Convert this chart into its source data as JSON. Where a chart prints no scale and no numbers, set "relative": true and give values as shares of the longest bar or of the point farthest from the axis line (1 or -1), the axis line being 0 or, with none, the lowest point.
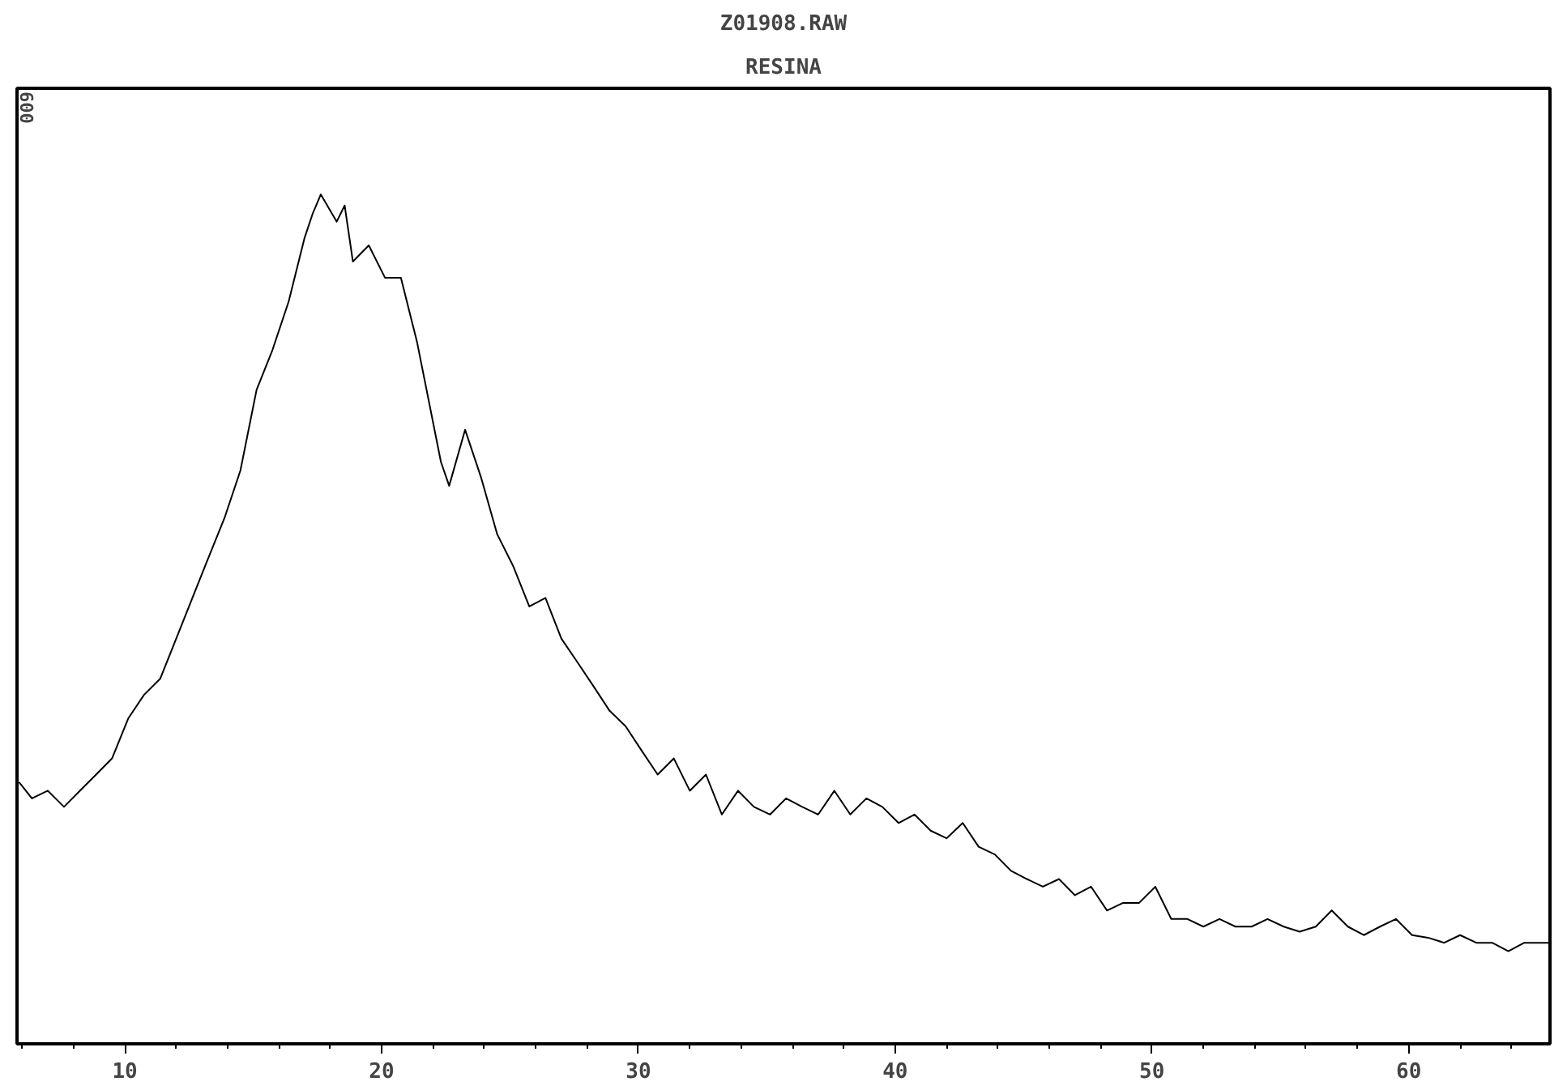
{
  "chart_data": {
    "type": "line",
    "title": "Z01908.RAW",
    "subtitle": "RESINA",
    "relative": true,
    "annotations": [
      "600"
    ],
    "xlim": [
      5.8,
      65.5
    ],
    "xticks": [
      10,
      20,
      30,
      40,
      50,
      60
    ],
    "grid": false,
    "marker": "none",
    "line_style": "solid",
    "series": [
      {
        "color": "#000000",
        "x": [
          5.88,
          6.38,
          7.0,
          7.63,
          8.25,
          8.88,
          9.5,
          10.13,
          10.75,
          11.38,
          12.0,
          12.63,
          13.25,
          13.88,
          14.5,
          15.13,
          15.75,
          16.38,
          17.0,
          17.31,
          17.63,
          18.25,
          18.56,
          18.88,
          19.5,
          20.13,
          20.75,
          21.38,
          22.0,
          22.31,
          22.63,
          23.25,
          23.88,
          24.5,
          25.13,
          25.75,
          26.38,
          27.0,
          27.63,
          28.25,
          28.88,
          29.5,
          30.13,
          30.75,
          31.38,
          32.0,
          32.63,
          33.25,
          33.88,
          34.5,
          35.13,
          35.75,
          36.38,
          37.0,
          37.63,
          38.25,
          38.88,
          39.5,
          40.13,
          40.75,
          41.38,
          42.0,
          42.63,
          43.25,
          43.88,
          44.5,
          45.13,
          45.75,
          46.38,
          47.0,
          47.63,
          48.25,
          48.88,
          49.5,
          50.13,
          50.75,
          51.38,
          52.0,
          52.63,
          53.25,
          53.88,
          54.5,
          55.13,
          55.75,
          56.38,
          57.0,
          57.63,
          58.25,
          58.88,
          59.5,
          60.13,
          60.75,
          61.38,
          62.0,
          62.63,
          63.25,
          63.88,
          64.5,
          65.44
        ],
        "values": [
          0.308,
          0.289,
          0.298,
          0.279,
          0.298,
          0.317,
          0.336,
          0.383,
          0.411,
          0.43,
          0.477,
          0.525,
          0.572,
          0.619,
          0.675,
          0.77,
          0.817,
          0.874,
          0.949,
          0.977,
          1,
          0.968,
          0.987,
          0.921,
          0.94,
          0.902,
          0.902,
          0.826,
          0.732,
          0.685,
          0.657,
          0.723,
          0.666,
          0.6,
          0.562,
          0.515,
          0.525,
          0.477,
          0.449,
          0.421,
          0.392,
          0.374,
          0.345,
          0.317,
          0.336,
          0.298,
          0.317,
          0.27,
          0.298,
          0.279,
          0.27,
          0.289,
          0.279,
          0.27,
          0.298,
          0.27,
          0.289,
          0.279,
          0.26,
          0.27,
          0.251,
          0.242,
          0.26,
          0.232,
          0.223,
          0.204,
          0.194,
          0.185,
          0.194,
          0.175,
          0.185,
          0.157,
          0.166,
          0.166,
          0.185,
          0.147,
          0.147,
          0.138,
          0.147,
          0.138,
          0.138,
          0.147,
          0.138,
          0.132,
          0.138,
          0.157,
          0.138,
          0.128,
          0.138,
          0.147,
          0.128,
          0.125,
          0.119,
          0.128,
          0.119,
          0.119,
          0.109,
          0.119,
          0.119
        ]
      }
    ]
  }
}
